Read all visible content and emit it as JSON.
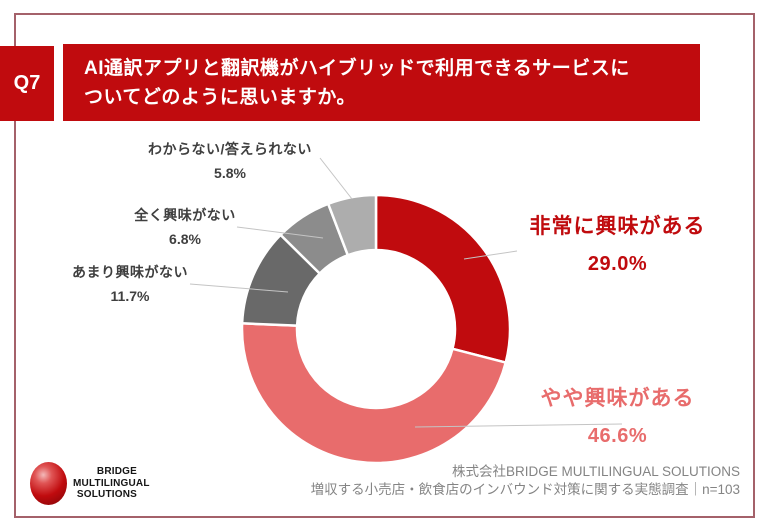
{
  "question": {
    "number": "Q7",
    "text_line1": "AI通訳アプリと翻訳機がハイブリッドで利用できるサービスに",
    "text_line2": "ついてどのように思いますか。"
  },
  "chart_data": {
    "type": "pie",
    "subtype": "donut",
    "title": "",
    "start_angle_deg": 0,
    "direction": "clockwise",
    "inner_radius_ratio": 0.59,
    "segments": [
      {
        "label": "非常に興味がある",
        "value": 29.0,
        "display": "29.0%",
        "color": "#c00b0e"
      },
      {
        "label": "やや興味がある",
        "value": 46.6,
        "display": "46.6%",
        "color": "#e86c6c"
      },
      {
        "label": "あまり興味がない",
        "value": 11.7,
        "display": "11.7%",
        "color": "#696969"
      },
      {
        "label": "全く興味がない",
        "value": 6.8,
        "display": "6.8%",
        "color": "#8c8c8c"
      },
      {
        "label": "わからない/答えられない",
        "value": 5.8,
        "display": "5.8%",
        "color": "#adadad"
      }
    ]
  },
  "logo": {
    "line1": "BRIDGE",
    "line2": "MULTILINGUAL",
    "line3": "SOLUTIONS"
  },
  "source": {
    "line1": "株式会社BRIDGE MULTILINGUAL SOLUTIONS",
    "line2": "増収する小売店・飲食店のインバウンド対策に関する実態調査｜n=103"
  },
  "colors": {
    "banner_red": "#c00b0e",
    "frame_border": "#a4616a",
    "label_dark": "#3f3f3f",
    "source_gray": "#848484",
    "leader_line": "#c4c4c4"
  }
}
